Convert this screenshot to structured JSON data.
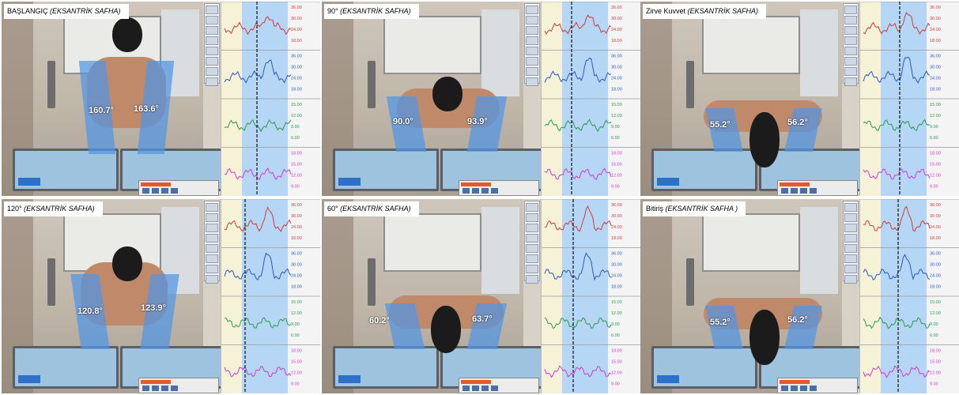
{
  "panels": [
    {
      "label_prefix": "BAŞLANGIÇ ",
      "label_phase": "(EKSANTRİK SAFHA)",
      "angle_left": "160.7°",
      "angle_right": "163.6°"
    },
    {
      "label_prefix": "90° ",
      "label_phase": "(EKSANTRİK SAFHA)",
      "angle_left": "90.0°",
      "angle_right": "93.9°"
    },
    {
      "label_prefix": "Zirve Kuvvet ",
      "label_phase": "(EKSANTRİK SAFHA)",
      "angle_left": "55.2°",
      "angle_right": "56.2°"
    },
    {
      "label_prefix": "120° ",
      "label_phase": "(EKSANTRİK SAFHA)",
      "angle_left": "120.8°",
      "angle_right": "123.9°"
    },
    {
      "label_prefix": "60° ",
      "label_phase": "(EKSANTRİK SAFHA)",
      "angle_left": "60.2°",
      "angle_right": "63.7°"
    },
    {
      "label_prefix": "Bitiriş ",
      "label_phase": "(EKSANTRİK SAFHA )",
      "angle_left": "55.2°",
      "angle_right": "56.2°"
    }
  ],
  "graph_ticks": [
    {
      "color": "#d23a3a",
      "labels": [
        "36.00",
        "30.00",
        "24.00",
        "18.00"
      ]
    },
    {
      "color": "#2a58c8",
      "labels": [
        "36.00",
        "30.00",
        "24.00",
        "18.00"
      ]
    },
    {
      "color": "#2a9a4a",
      "labels": [
        "15.00",
        "12.00",
        "9.00",
        "6.00"
      ]
    },
    {
      "color": "#d03ad0",
      "labels": [
        "18.00",
        "15.00",
        "12.00",
        "9.00"
      ]
    }
  ],
  "colors": {
    "highlight": "#b6d6f5",
    "highlight_left": "#f6f2d8",
    "arm_overlay": "#5096e6"
  }
}
